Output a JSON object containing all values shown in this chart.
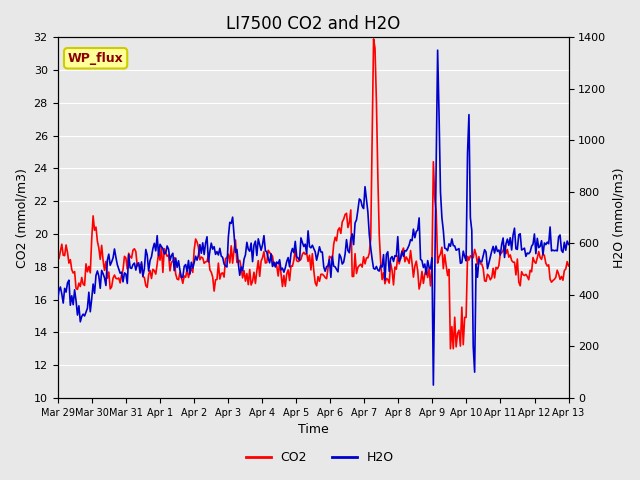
{
  "title": "LI7500 CO2 and H2O",
  "xlabel": "Time",
  "ylabel_left": "CO2 (mmol/m3)",
  "ylabel_right": "H2O (mmol/m3)",
  "ylim_left": [
    10,
    32
  ],
  "ylim_right": [
    0,
    1400
  ],
  "yticks_left": [
    10,
    12,
    14,
    16,
    18,
    20,
    22,
    24,
    26,
    28,
    30,
    32
  ],
  "yticks_right": [
    0,
    200,
    400,
    600,
    800,
    1000,
    1200,
    1400
  ],
  "xtick_labels": [
    "Mar 29",
    "Mar 30",
    "Mar 31",
    "Apr 1",
    "Apr 2",
    "Apr 3",
    "Apr 4",
    "Apr 5",
    "Apr 6",
    "Apr 7",
    "Apr 8",
    "Apr 9",
    "Apr 10",
    "Apr 11",
    "Apr 12",
    "Apr 13"
  ],
  "legend_labels": [
    "CO2",
    "H2O"
  ],
  "co2_color": "#FF0000",
  "h2o_color": "#0000CC",
  "background_color": "#E8E8E8",
  "annotation_text": "WP_flux",
  "annotation_bg": "#FFFF99",
  "annotation_border": "#CCCC00",
  "title_fontsize": 12,
  "axis_fontsize": 9,
  "tick_fontsize": 8,
  "legend_fontsize": 9,
  "line_width": 1.2,
  "n_points": 360
}
